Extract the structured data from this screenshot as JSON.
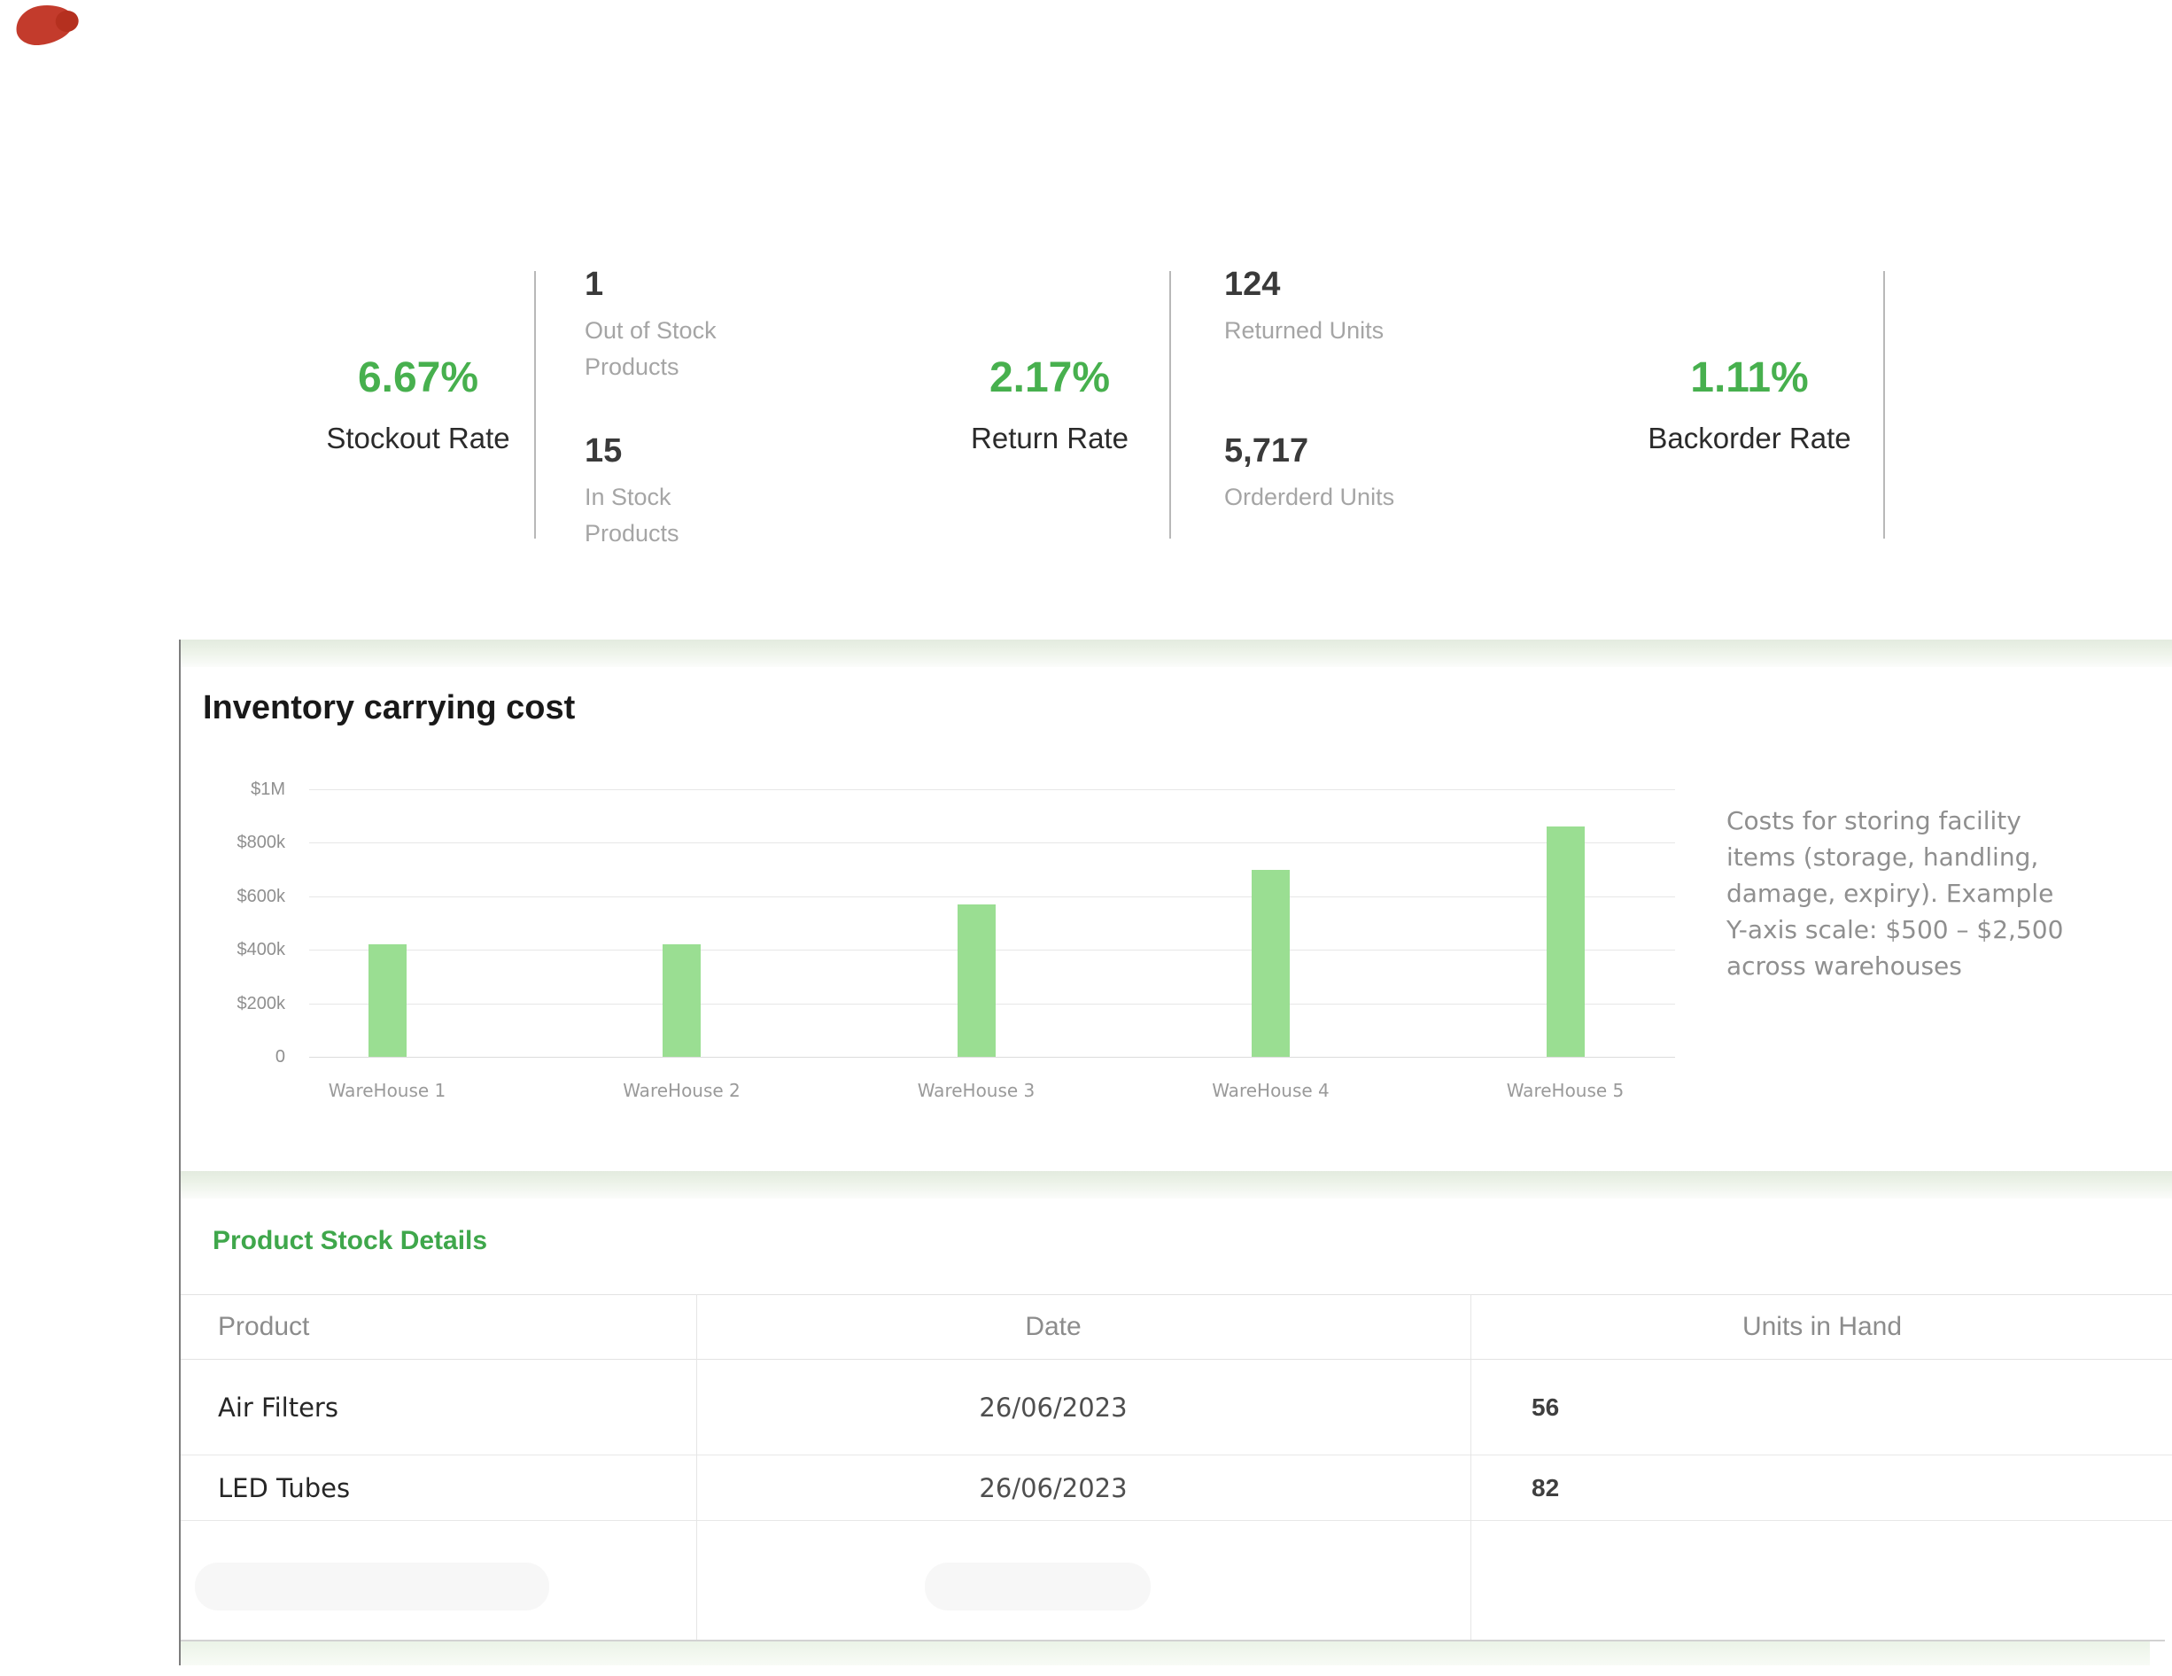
{
  "artifact": {
    "color": "#c33b2c"
  },
  "colors": {
    "accent_green": "#47b04e",
    "bar_green": "#9ade92",
    "title_green": "#3fa74b",
    "label_gray": "#a5a5a5",
    "band_green": "#e3ebdf"
  },
  "kpis": {
    "stockout": {
      "value": "6.67%",
      "label": "Stockout Rate"
    },
    "out_of_stock": {
      "value": "1",
      "label_lines": [
        "Out of Stock",
        "Products"
      ]
    },
    "in_stock": {
      "value": "15",
      "label_lines": [
        "In Stock",
        "Products"
      ]
    },
    "return": {
      "value": "2.17%",
      "label": "Return Rate"
    },
    "returned_units": {
      "value": "124",
      "label": "Returned Units"
    },
    "ordered_units": {
      "value": "5,717",
      "label": "Orderderd Units"
    },
    "backorder": {
      "value": "1.11%",
      "label": "Backorder Rate"
    }
  },
  "chart_section": {
    "title": "Inventory carrying cost",
    "annotation_lines": [
      "Costs for storing facility",
      "items (storage, handling,",
      "damage, expiry). Example",
      "Y-axis scale: $500 – $2,500",
      "across warehouses"
    ]
  },
  "chart_data": {
    "type": "bar",
    "title": "Inventory carrying cost",
    "categories": [
      "WareHouse 1",
      "WareHouse 2",
      "WareHouse 3",
      "WareHouse 4",
      "WareHouse 5"
    ],
    "values": [
      420000,
      420000,
      570000,
      700000,
      860000
    ],
    "y_tick_labels": [
      "0",
      "$200k",
      "$400k",
      "$600k",
      "$800k",
      "$1M"
    ],
    "ylim": [
      0,
      1000000
    ],
    "grid": true,
    "legend": false,
    "bar_color": "#9ade92",
    "xlabel": "",
    "ylabel": ""
  },
  "table_section": {
    "title": "Product Stock Details",
    "headers": [
      "Product",
      "Date",
      "Units in Hand"
    ],
    "rows": [
      {
        "product": "Air Filters",
        "date": "26/06/2023",
        "units": "56"
      },
      {
        "product": "LED Tubes",
        "date": "26/06/2023",
        "units": "82"
      }
    ]
  }
}
